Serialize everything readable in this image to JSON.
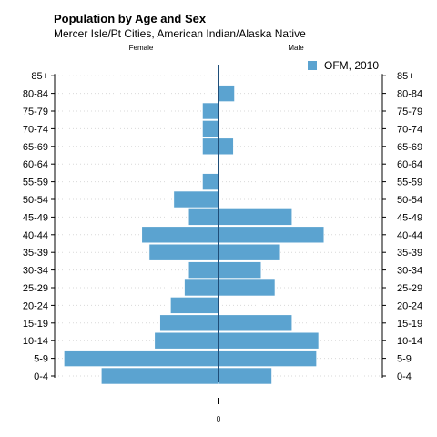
{
  "chart_data": {
    "type": "bar",
    "orientation": "horizontal",
    "title": "Population by Age and Sex",
    "subtitle": "Mercer Isle/Pt Cities, American Indian/Alaska Native",
    "side_labels": {
      "left": "Female",
      "right": "Male"
    },
    "x_tick_label": "0",
    "categories": [
      "0-4",
      "5-9",
      "10-14",
      "15-19",
      "20-24",
      "25-29",
      "30-34",
      "35-39",
      "40-44",
      "45-49",
      "50-54",
      "55-59",
      "60-64",
      "65-69",
      "70-74",
      "75-79",
      "80-84",
      "85+"
    ],
    "series": [
      {
        "name": "OFM, 2010",
        "color": "#5ba3d0",
        "female": [
          11,
          14.5,
          6,
          5.5,
          4.5,
          3.2,
          2.8,
          6.5,
          7.2,
          2.8,
          4.2,
          1.5,
          0,
          1.5,
          1.5,
          1.5,
          0,
          0
        ],
        "male": [
          5,
          9.2,
          9.4,
          6.9,
          0,
          5.3,
          4,
          5.8,
          9.9,
          6.9,
          0,
          0,
          0,
          1.4,
          0,
          0,
          1.5,
          0
        ]
      }
    ],
    "xlim": [
      -15,
      15
    ],
    "grid": true,
    "legend_position": "top-right"
  }
}
